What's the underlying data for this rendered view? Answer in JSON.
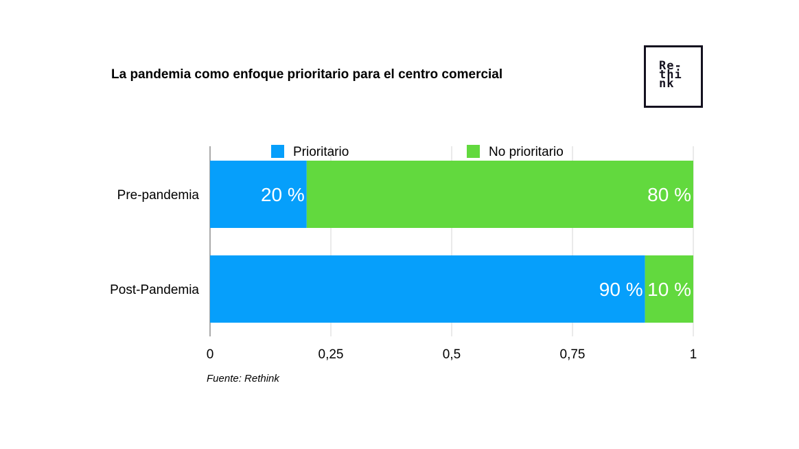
{
  "chart_data": {
    "type": "bar",
    "orientation": "horizontal",
    "stacked": true,
    "title": "La pandemia como enfoque prioritario para el centro comercial",
    "categories": [
      "Pre-pandemia",
      "Post-Pandemia"
    ],
    "series": [
      {
        "name": "Prioritario",
        "values": [
          0.2,
          0.9
        ],
        "color": "#069ffb",
        "labels": [
          "20 %",
          "90 %"
        ]
      },
      {
        "name": "No prioritario",
        "values": [
          0.8,
          0.1
        ],
        "color": "#62d93e",
        "labels": [
          "80 %",
          "10 %"
        ]
      }
    ],
    "xlim": [
      0,
      1
    ],
    "xticks": [
      "0",
      "0,25",
      "0,5",
      "0,75",
      "1"
    ],
    "grid": true,
    "legend_position": "top",
    "source": "Fuente: Rethink"
  },
  "logo": {
    "lines": [
      "Re-",
      "thi",
      "nk"
    ]
  }
}
